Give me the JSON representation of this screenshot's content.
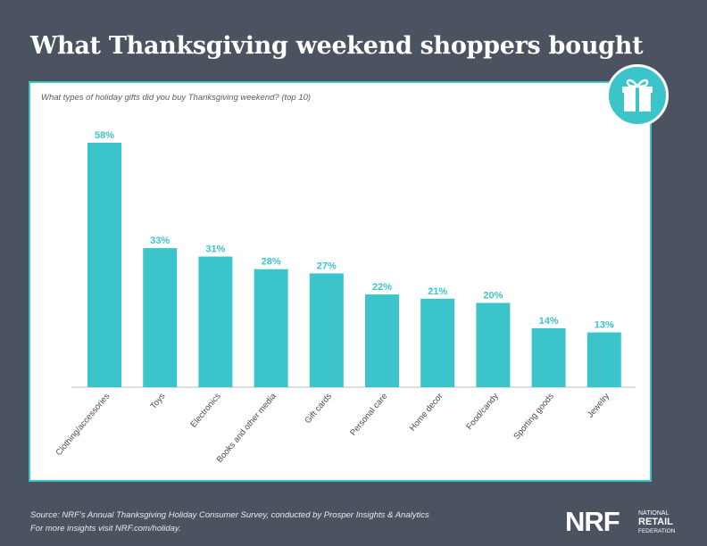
{
  "header": {
    "title": "What Thanksgiving weekend shoppers bought"
  },
  "icons": {
    "badge": "gift-icon"
  },
  "colors": {
    "background": "#4b5260",
    "accent": "#3cc4cb",
    "panel": "#ffffff"
  },
  "chart_data": {
    "type": "bar",
    "subtitle": "What types of holiday gifts did you buy Thanksgiving weekend? (top 10)",
    "categories": [
      "Clothing/accessories",
      "Toys",
      "Electronics",
      "Books and other media",
      "Gift cards",
      "Personal care",
      "Home decor",
      "Food/candy",
      "Sporting goods",
      "Jewelry"
    ],
    "values": [
      58,
      33,
      31,
      28,
      27,
      22,
      21,
      20,
      14,
      13
    ],
    "value_labels": [
      "58%",
      "33%",
      "31%",
      "28%",
      "27%",
      "22%",
      "21%",
      "20%",
      "14%",
      "13%"
    ],
    "unit": "%",
    "ylim": [
      0,
      58
    ],
    "grid": false,
    "legend": "none"
  },
  "footer": {
    "source": "Source: NRF’s Annual Thanksgiving Holiday Consumer Survey, conducted by Prosper Insights & Analytics",
    "more": "For more insights visit NRF.com/holiday."
  },
  "logo": {
    "mark": "NRF",
    "line1": "NATIONAL",
    "line2": "RETAIL",
    "line3": "FEDERATION"
  }
}
